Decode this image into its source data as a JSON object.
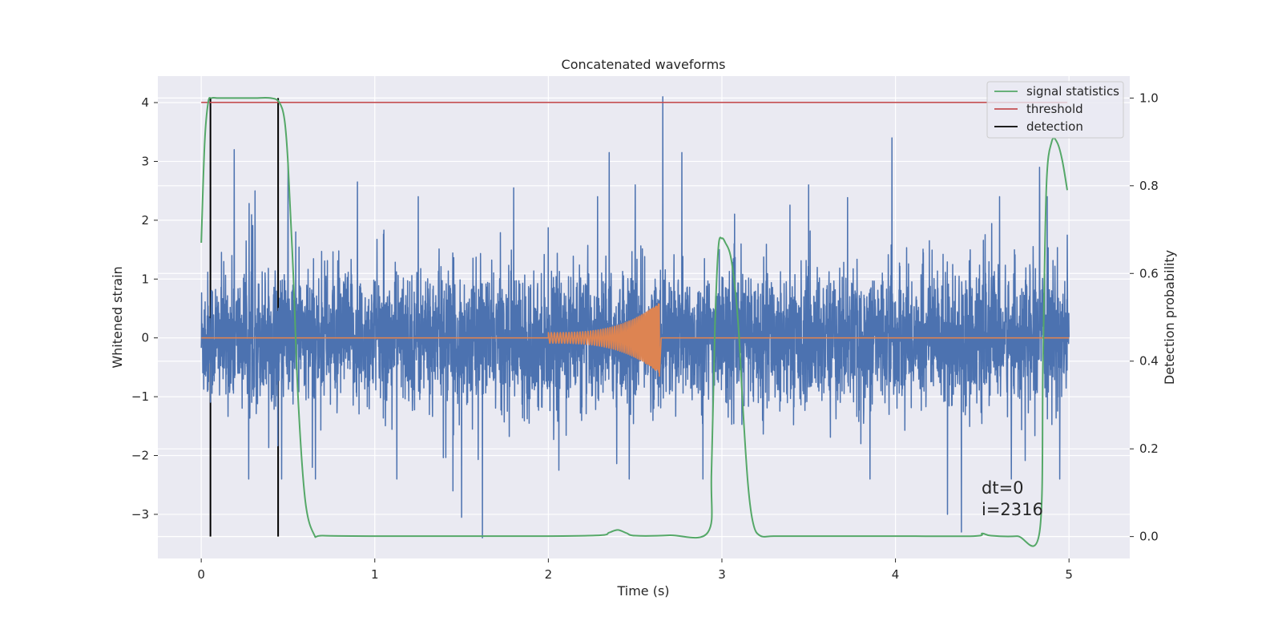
{
  "chart_data": {
    "type": "line",
    "title": "Concatenated waveforms",
    "xlabel": "Time (s)",
    "ylabel": "Whitened strain",
    "y2label": "Detection probability",
    "xlim": [
      -0.25,
      5.35
    ],
    "ylim": [
      -3.75,
      4.45
    ],
    "y2lim": [
      -0.05,
      1.05
    ],
    "xticks": [
      0,
      1,
      2,
      3,
      4,
      5
    ],
    "xtick_labels": [
      "0",
      "1",
      "2",
      "3",
      "4",
      "5"
    ],
    "yticks": [
      -3,
      -2,
      -1,
      0,
      1,
      2,
      3,
      4
    ],
    "ytick_labels": [
      "−3",
      "−2",
      "−1",
      "0",
      "1",
      "2",
      "3",
      "4"
    ],
    "y2ticks": [
      0.0,
      0.2,
      0.4,
      0.6,
      0.8,
      1.0
    ],
    "y2tick_labels": [
      "0.0",
      "0.2",
      "0.4",
      "0.6",
      "0.8",
      "1.0"
    ],
    "grid": true,
    "legend_position": "top-right",
    "colors": {
      "background": "#eaeaf2",
      "grid": "#ffffff",
      "strain": "#4c72b0",
      "template": "#dd8452",
      "signal_statistics": "#55a868",
      "threshold": "#c44e52",
      "detection": "#000000"
    },
    "series": [
      {
        "name": "signal statistics",
        "axis": "right",
        "x": [
          0.0,
          0.02,
          0.04,
          0.06,
          0.1,
          0.2,
          0.3,
          0.4,
          0.45,
          0.48,
          0.5,
          0.53,
          0.56,
          0.6,
          0.65,
          0.7,
          1.0,
          1.5,
          2.0,
          2.3,
          2.35,
          2.4,
          2.45,
          2.5,
          2.7,
          2.92,
          2.94,
          2.96,
          2.98,
          3.0,
          3.02,
          3.05,
          3.08,
          3.1,
          3.12,
          3.15,
          3.18,
          3.22,
          3.3,
          3.5,
          4.0,
          4.45,
          4.5,
          4.55,
          4.7,
          4.83,
          4.85,
          4.87,
          4.9,
          4.93,
          4.96,
          4.99
        ],
        "values": [
          0.67,
          0.9,
          0.99,
          1.0,
          1.0,
          1.0,
          1.0,
          1.0,
          0.99,
          0.95,
          0.85,
          0.6,
          0.3,
          0.08,
          0.005,
          0.002,
          0.001,
          0.001,
          0.001,
          0.003,
          0.009,
          0.015,
          0.008,
          0.002,
          0.003,
          0.01,
          0.15,
          0.48,
          0.66,
          0.68,
          0.67,
          0.64,
          0.55,
          0.45,
          0.3,
          0.12,
          0.03,
          0.002,
          0.001,
          0.001,
          0.001,
          0.001,
          0.007,
          0.002,
          0.001,
          0.01,
          0.4,
          0.8,
          0.9,
          0.9,
          0.86,
          0.79
        ]
      },
      {
        "name": "threshold",
        "axis": "right",
        "x": [
          0.0,
          4.99
        ],
        "values": [
          0.99,
          0.99
        ]
      },
      {
        "name": "detection",
        "axis": "right",
        "x": [
          0.053,
          0.443
        ],
        "ymin": 0.0,
        "ymax": 1.0
      },
      {
        "axis": "left",
        "kind": "noise",
        "x": [
          0.0,
          5.0
        ],
        "amplitude": 0.55,
        "peaks": [
          {
            "x": 0.19,
            "y": 3.2
          },
          {
            "x": 0.31,
            "y": 2.5
          },
          {
            "x": 0.5,
            "y": 2.95
          },
          {
            "x": 0.64,
            "y": -2.2
          },
          {
            "x": 0.9,
            "y": 2.65
          },
          {
            "x": 1.25,
            "y": 2.4
          },
          {
            "x": 1.45,
            "y": -2.6
          },
          {
            "x": 1.5,
            "y": -3.05
          },
          {
            "x": 1.62,
            "y": -3.4
          },
          {
            "x": 1.8,
            "y": 2.55
          },
          {
            "x": 2.35,
            "y": 3.15
          },
          {
            "x": 2.5,
            "y": 2.6
          },
          {
            "x": 2.66,
            "y": 4.1
          },
          {
            "x": 2.77,
            "y": 3.15
          },
          {
            "x": 3.5,
            "y": 2.6
          },
          {
            "x": 3.98,
            "y": 3.4
          },
          {
            "x": 4.3,
            "y": -3.0
          },
          {
            "x": 4.38,
            "y": -3.3
          },
          {
            "x": 4.6,
            "y": 2.4
          },
          {
            "x": 4.83,
            "y": 2.9
          }
        ]
      },
      {
        "axis": "left",
        "kind": "chirp",
        "x": [
          0.0,
          5.0
        ],
        "chirp_start": 2.0,
        "chirp_merger": 2.64,
        "peak_amplitude": 0.6,
        "min_amplitude": -0.65
      }
    ],
    "annotations": [
      "dt=0",
      "i=2316"
    ],
    "legend": [
      "signal statistics",
      "threshold",
      "detection"
    ]
  }
}
